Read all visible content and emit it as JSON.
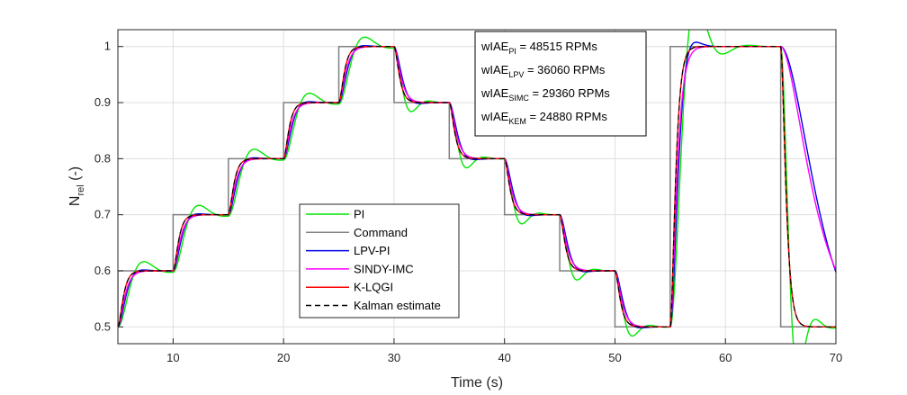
{
  "chart_data": {
    "type": "line",
    "title": "",
    "xlabel": "Time (s)",
    "ylabel": {
      "base": "N",
      "sub": "rel",
      "unit": " (-)"
    },
    "xlim": [
      5,
      70
    ],
    "ylim": [
      0.47,
      1.03
    ],
    "xticks": [
      10,
      20,
      30,
      40,
      50,
      60,
      70
    ],
    "yticks": [
      0.5,
      0.6,
      0.7,
      0.8,
      0.9,
      1
    ],
    "ytick_labels": [
      "0.5",
      "0.6",
      "0.7",
      "0.8",
      "0.9",
      "1"
    ],
    "grid": true,
    "legend_position": "center",
    "command": {
      "name": "Command",
      "times": [
        5,
        10,
        15,
        20,
        25,
        30,
        35,
        40,
        45,
        50,
        55,
        65
      ],
      "levels": [
        0.6,
        0.7,
        0.8,
        0.9,
        1.0,
        0.9,
        0.8,
        0.7,
        0.6,
        0.5,
        1.0,
        0.5
      ],
      "initial": 0.5
    },
    "series": [
      {
        "name": "PI",
        "color": "#00e600",
        "tau": 0.65,
        "zeta": 0.5,
        "tauRatio": 1.5,
        "tail": null
      },
      {
        "name": "Command",
        "color": "#808080"
      },
      {
        "name": "LPV-PI",
        "color": "#0000e6",
        "tau": 0.45,
        "zeta": 0.8,
        "tauRatio": 1.0,
        "tail": 0.22
      },
      {
        "name": "SINDY-IMC",
        "color": "#ff00ff",
        "tau": 0.35,
        "zeta": 1.0,
        "tauRatio": 1.0,
        "tail": 0.28
      },
      {
        "name": "K-LQGI",
        "color": "#ff0000",
        "tau": 0.28,
        "zeta": 1.0,
        "tauRatio": 1.0,
        "tail": null
      },
      {
        "name": "Kalman estimate",
        "color": "#000000",
        "tau": 0.28,
        "zeta": 1.0,
        "tauRatio": 1.0,
        "tail": null,
        "dashed": true
      }
    ],
    "annotations": [
      {
        "label": "wIAE",
        "sub": "PI",
        "value": " = 48515 RPMs"
      },
      {
        "label": "wIAE",
        "sub": "LPV",
        "value": " = 36060 RPMs"
      },
      {
        "label": "wIAE",
        "sub": "SIMC",
        "value": " = 29360 RPMs"
      },
      {
        "label": "wIAE",
        "sub": "KEM",
        "value": " = 24880 RPMs"
      }
    ]
  }
}
